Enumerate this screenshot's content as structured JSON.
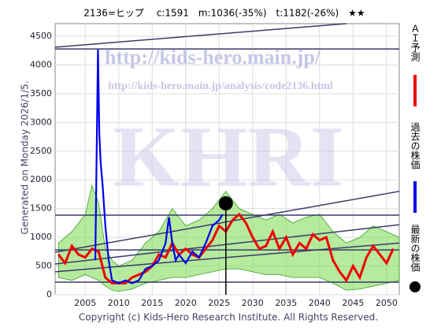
{
  "chart_data": {
    "type": "line",
    "title": "2136=ヒップ　 c:1591　m:1036(-35%)　t:1182(-26%)　★★",
    "side_note": "Generated on Monday 2026/1/5.",
    "footer": "Copyright (c) Kids-Hero Research Institute. All Rights Reserved.",
    "watermarks": [
      "http://kids-hero.main.jp/",
      "http://kids-hero.main.jp/analysis/code2136.html",
      "KHRI"
    ],
    "xlim": [
      2000.5,
      2051.9
    ],
    "ylim": [
      0,
      4720
    ],
    "xticks": [
      2005,
      2010,
      2015,
      2020,
      2025,
      2030,
      2035,
      2040,
      2045,
      2050
    ],
    "yticks": [
      0,
      500,
      1000,
      1500,
      2000,
      2500,
      3000,
      3500,
      4000,
      4500
    ],
    "grid": true,
    "band": {
      "color": "#7ad84a",
      "x": [
        2001,
        2003,
        2005,
        2006,
        2007,
        2008,
        2009,
        2010,
        2012,
        2014,
        2016,
        2018,
        2020,
        2022,
        2024,
        2026,
        2028,
        2030,
        2032,
        2034,
        2036,
        2038,
        2040,
        2042,
        2044,
        2046,
        2048,
        2050,
        2051.9
      ],
      "upper": [
        900,
        1100,
        1400,
        1900,
        1600,
        800,
        600,
        500,
        600,
        900,
        1100,
        1500,
        1200,
        1300,
        1500,
        1800,
        1500,
        1400,
        1300,
        1400,
        1250,
        1350,
        1400,
        1100,
        900,
        1000,
        1200,
        1100,
        1000
      ],
      "lower": [
        300,
        250,
        350,
        300,
        250,
        150,
        80,
        60,
        100,
        200,
        250,
        300,
        300,
        350,
        400,
        450,
        450,
        400,
        350,
        350,
        300,
        300,
        300,
        200,
        80,
        100,
        150,
        200,
        250
      ]
    },
    "ref_lines": {
      "color": "#3a3a6a",
      "lines": [
        {
          "x": [
            2000.5,
            2051.9
          ],
          "values": [
            4280,
            4280
          ]
        },
        {
          "x": [
            2000.5,
            2051.9
          ],
          "values": [
            1385,
            1385
          ]
        },
        {
          "x": [
            2000.5,
            2051.9
          ],
          "values": [
            780,
            780
          ]
        },
        {
          "x": [
            2000.5,
            2051.9
          ],
          "values": [
            220,
            220
          ]
        },
        {
          "x": [
            2000.5,
            2044
          ],
          "values": [
            4310,
            4720
          ]
        },
        {
          "x": [
            2000.5,
            2051.9
          ],
          "values": [
            740,
            1800
          ]
        },
        {
          "x": [
            2000.5,
            2051.9
          ],
          "values": [
            535,
            1220
          ]
        },
        {
          "x": [
            2000.5,
            2051.9
          ],
          "values": [
            400,
            900
          ]
        }
      ]
    },
    "series": [
      {
        "name": "ＡＩ予測",
        "color": "#ee0000",
        "x": [
          2001,
          2002,
          2003,
          2004,
          2005,
          2006,
          2007,
          2008,
          2009,
          2010,
          2011,
          2012,
          2013,
          2014,
          2015,
          2016,
          2017,
          2018,
          2019,
          2020,
          2021,
          2022,
          2023,
          2024,
          2025,
          2026,
          2027,
          2028,
          2029,
          2030,
          2031,
          2032,
          2033,
          2034,
          2035,
          2036,
          2037,
          2038,
          2039,
          2040,
          2041,
          2042,
          2043,
          2044,
          2045,
          2046,
          2047,
          2048,
          2049,
          2050,
          2051
        ],
        "values": [
          700,
          550,
          850,
          700,
          650,
          800,
          750,
          300,
          200,
          200,
          200,
          300,
          350,
          400,
          500,
          700,
          650,
          900,
          700,
          800,
          700,
          650,
          800,
          950,
          1200,
          1100,
          1300,
          1400,
          1250,
          1000,
          800,
          850,
          1100,
          800,
          1000,
          700,
          900,
          800,
          1050,
          950,
          1000,
          600,
          400,
          250,
          500,
          300,
          650,
          850,
          700,
          550,
          800
        ]
      },
      {
        "name": "過去の株価",
        "color": "#0000ee",
        "x": [
          2006.5,
          2006.9,
          2007.1,
          2007.3,
          2007.6,
          2008,
          2008.5,
          2009,
          2010,
          2011,
          2012,
          2013,
          2014,
          2015,
          2016,
          2017,
          2017.5,
          2018,
          2018.5,
          2019,
          2020,
          2021,
          2022,
          2023,
          2024,
          2025,
          2025.5
        ],
        "values": [
          600,
          4270,
          2800,
          2300,
          1900,
          1200,
          600,
          250,
          200,
          250,
          200,
          250,
          450,
          500,
          600,
          900,
          1350,
          900,
          600,
          700,
          550,
          750,
          650,
          900,
          1200,
          1300,
          1400
        ]
      },
      {
        "name": "最新の株価",
        "color": "#000000",
        "x": [
          2026
        ],
        "values": [
          1591
        ]
      }
    ]
  }
}
